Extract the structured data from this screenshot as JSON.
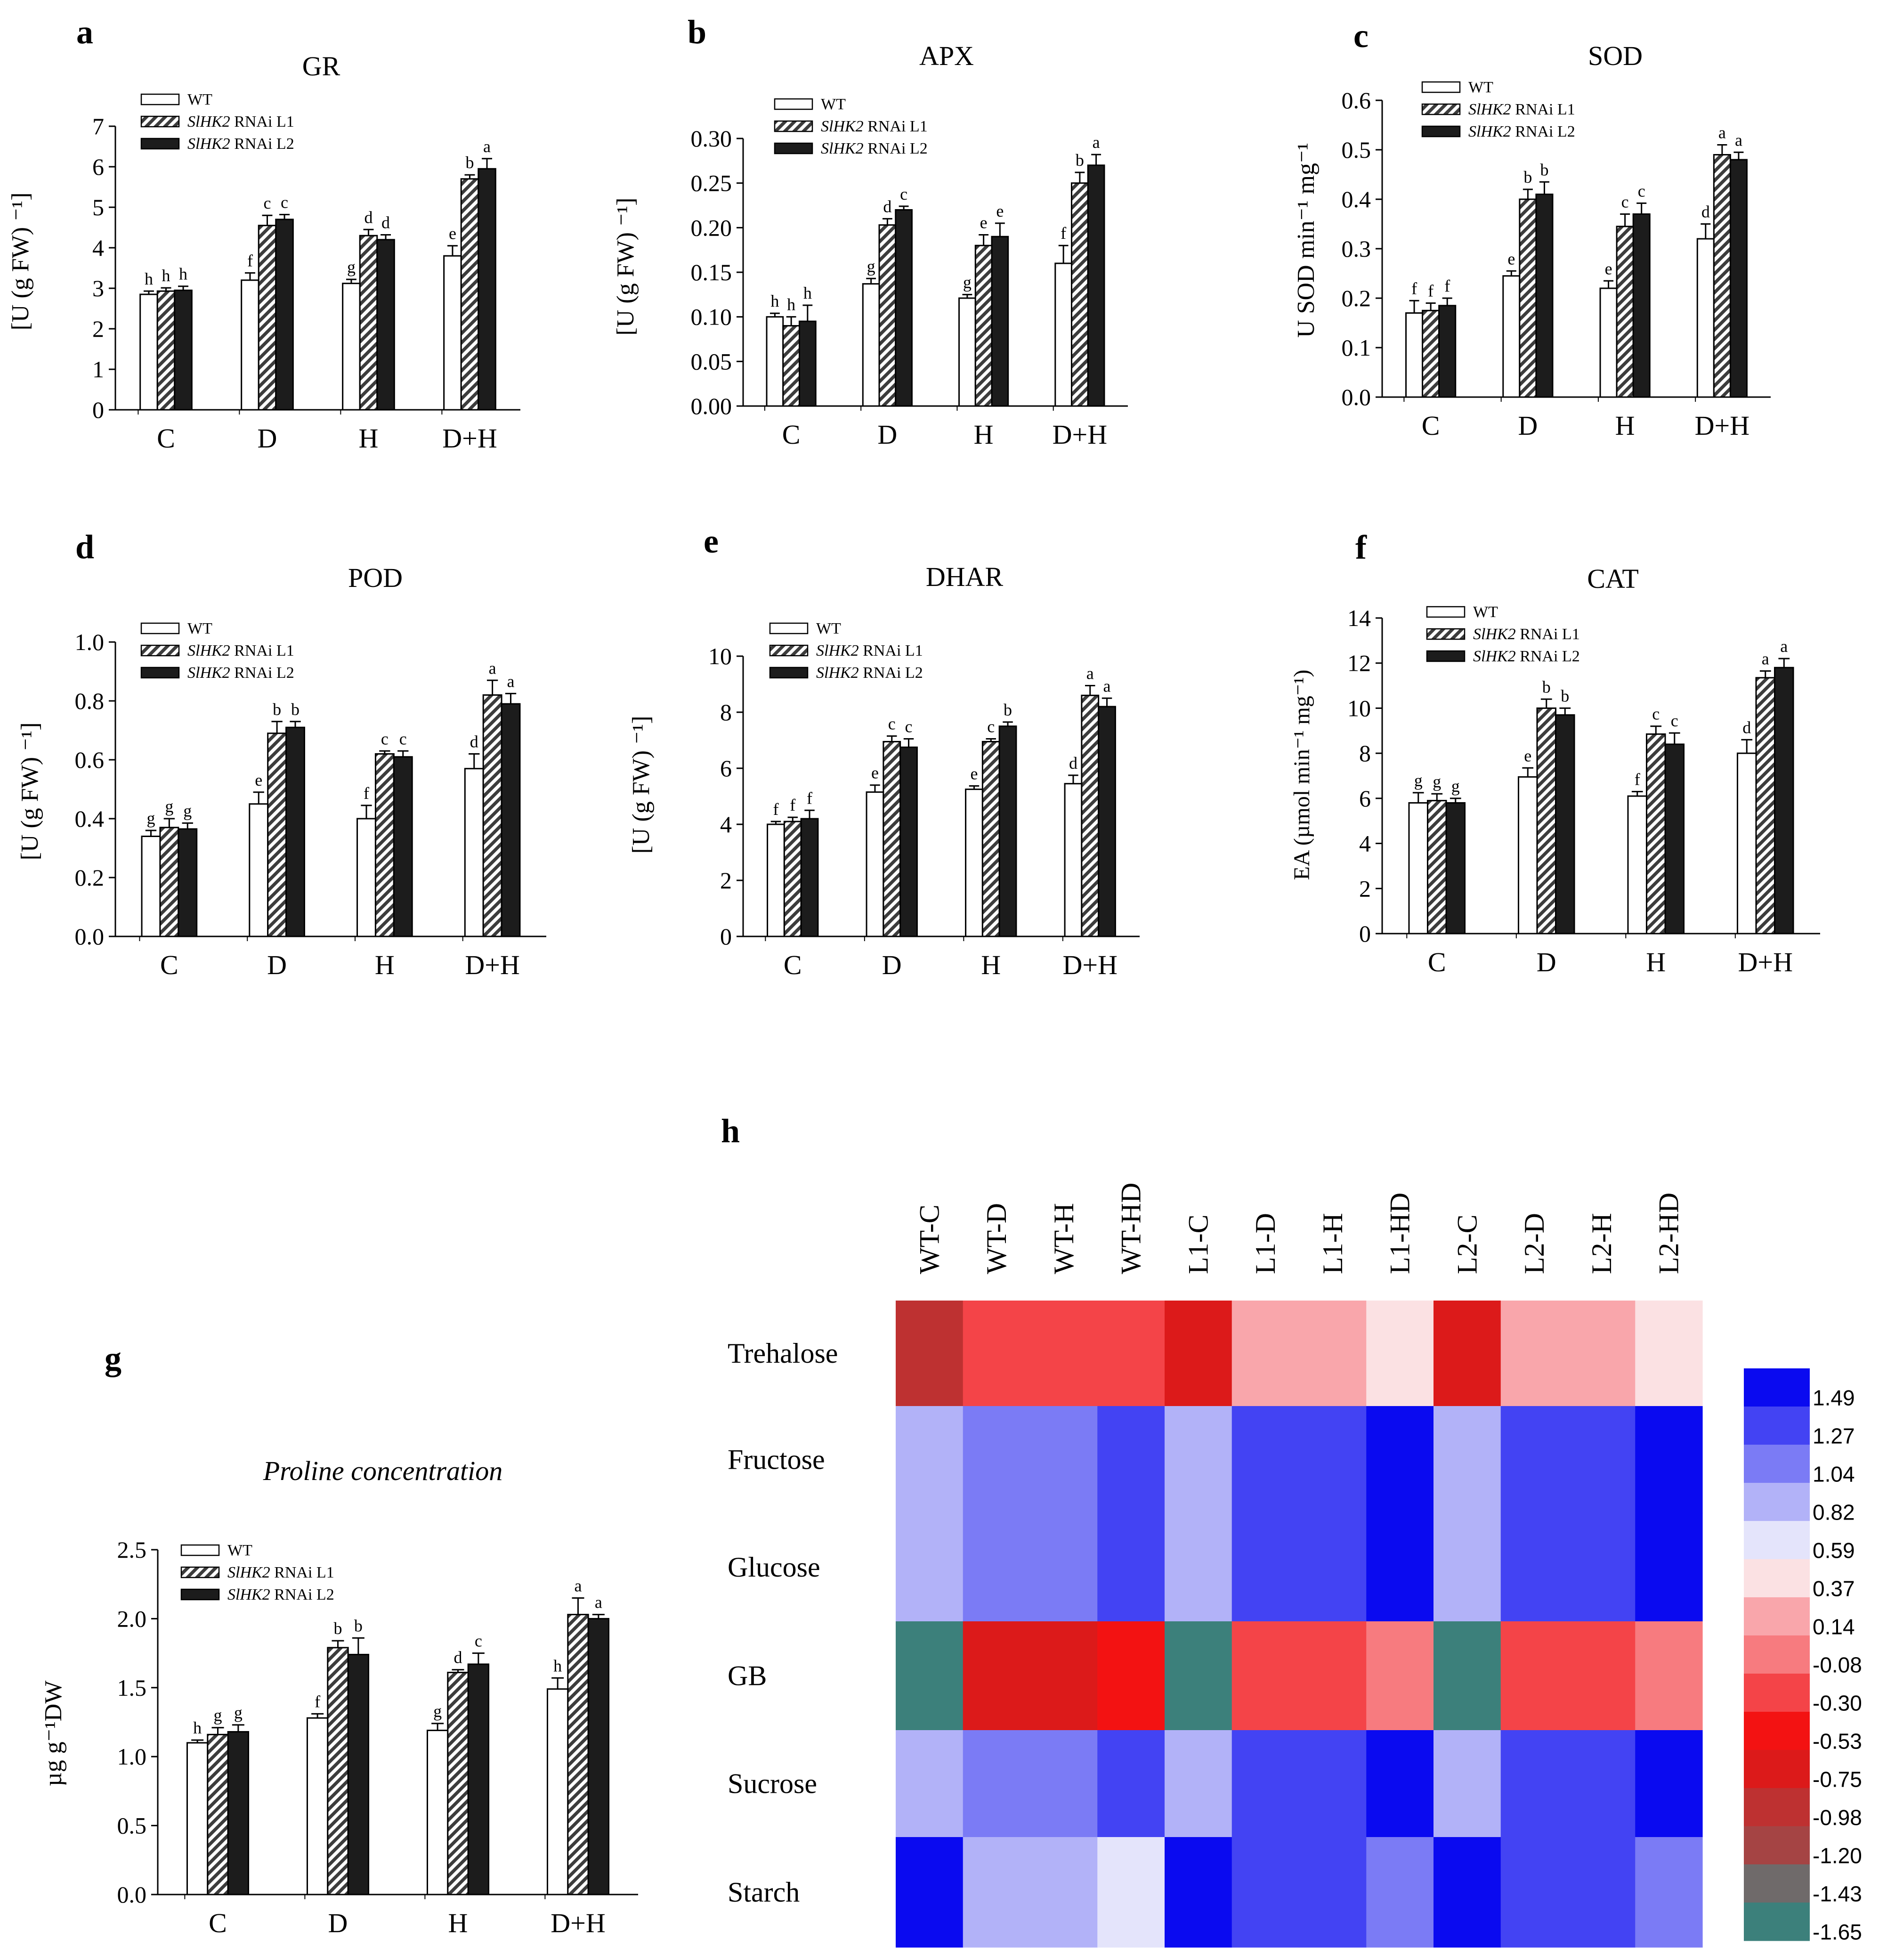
{
  "chart_data": [
    {
      "type": "bar",
      "panel_letter": "a",
      "title": "GR",
      "ylabel": "[U (g FW) ⁻¹]",
      "ylim": [
        0,
        7
      ],
      "yticks": [
        "0",
        "1",
        "2",
        "3",
        "4",
        "5",
        "6",
        "7"
      ],
      "categories": [
        "C",
        "D",
        "H",
        "D+H"
      ],
      "legend": [
        {
          "label": "WT",
          "italic": "",
          "rest": ""
        },
        {
          "label": "SlHK2 RNAi L1",
          "italic": "SlHK2",
          "rest": " RNAi L1"
        },
        {
          "label": "SlHK2 RNAi L2",
          "italic": "SlHK2",
          "rest": " RNAi L2"
        }
      ],
      "series": [
        {
          "name": "WT",
          "values": [
            2.85,
            3.2,
            3.12,
            3.8
          ],
          "errors": [
            0.08,
            0.18,
            0.1,
            0.25
          ],
          "letters": [
            "h",
            "f",
            "g",
            "e"
          ]
        },
        {
          "name": "SlHK2 RNAi L1",
          "values": [
            2.93,
            4.55,
            4.3,
            5.7
          ],
          "errors": [
            0.08,
            0.25,
            0.15,
            0.1
          ],
          "letters": [
            "h",
            "c",
            "d",
            "b"
          ]
        },
        {
          "name": "SlHK2 RNAi L2",
          "values": [
            2.95,
            4.7,
            4.2,
            5.95
          ],
          "errors": [
            0.1,
            0.12,
            0.12,
            0.25
          ],
          "letters": [
            "h",
            "c",
            "d",
            "a"
          ]
        }
      ]
    },
    {
      "type": "bar",
      "panel_letter": "b",
      "title": "APX",
      "ylabel": "[U (g FW) ⁻¹]",
      "ylim": [
        0,
        0.3
      ],
      "yticks": [
        "0.00",
        "0.05",
        "0.10",
        "0.15",
        "0.20",
        "0.25",
        "0.30"
      ],
      "categories": [
        "C",
        "D",
        "H",
        "D+H"
      ],
      "legend": [
        {
          "label": "WT",
          "italic": "",
          "rest": ""
        },
        {
          "label": "SlHK2 RNAi L1",
          "italic": "SlHK2",
          "rest": " RNAi L1"
        },
        {
          "label": "SlHK2 RNAi L2",
          "italic": "SlHK2",
          "rest": " RNAi L2"
        }
      ],
      "series": [
        {
          "name": "WT",
          "values": [
            0.1,
            0.137,
            0.121,
            0.16
          ],
          "errors": [
            0.004,
            0.006,
            0.004,
            0.02
          ],
          "letters": [
            "h",
            "g",
            "g",
            "f"
          ]
        },
        {
          "name": "SlHK2 RNAi L1",
          "values": [
            0.09,
            0.203,
            0.18,
            0.25
          ],
          "errors": [
            0.01,
            0.007,
            0.012,
            0.012
          ],
          "letters": [
            "h",
            "d",
            "e",
            "b"
          ]
        },
        {
          "name": "SlHK2 RNAi L2",
          "values": [
            0.095,
            0.22,
            0.19,
            0.27
          ],
          "errors": [
            0.018,
            0.004,
            0.015,
            0.012
          ],
          "letters": [
            "h",
            "c",
            "e",
            "a"
          ]
        }
      ]
    },
    {
      "type": "bar",
      "panel_letter": "c",
      "title": "SOD",
      "ylabel": "U SOD min⁻¹ mg⁻¹",
      "ylim": [
        0,
        0.6
      ],
      "yticks": [
        "0.0",
        "0.1",
        "0.2",
        "0.3",
        "0.4",
        "0.5",
        "0.6"
      ],
      "categories": [
        "C",
        "D",
        "H",
        "D+H"
      ],
      "legend": [
        {
          "label": "WT",
          "italic": "",
          "rest": ""
        },
        {
          "label": "SlHK2 RNAi L1",
          "italic": "SlHK2",
          "rest": " RNAi L1"
        },
        {
          "label": "SlHK2 RNAi L2",
          "italic": "SlHK2",
          "rest": " RNAi L2"
        }
      ],
      "series": [
        {
          "name": "WT",
          "values": [
            0.17,
            0.245,
            0.22,
            0.32
          ],
          "errors": [
            0.025,
            0.01,
            0.015,
            0.03
          ],
          "letters": [
            "f",
            "e",
            "e",
            "d"
          ]
        },
        {
          "name": "SlHK2 RNAi L1",
          "values": [
            0.175,
            0.4,
            0.345,
            0.49
          ],
          "errors": [
            0.015,
            0.02,
            0.025,
            0.02
          ],
          "letters": [
            "f",
            "b",
            "c",
            "a"
          ]
        },
        {
          "name": "SlHK2 RNAi L2",
          "values": [
            0.185,
            0.41,
            0.37,
            0.48
          ],
          "errors": [
            0.015,
            0.025,
            0.022,
            0.015
          ],
          "letters": [
            "f",
            "b",
            "c",
            "a"
          ]
        }
      ]
    },
    {
      "type": "bar",
      "panel_letter": "d",
      "title": "POD",
      "ylabel": "[U (g FW) ⁻¹]",
      "ylim": [
        0,
        1
      ],
      "yticks": [
        "0.0",
        "0.2",
        "0.4",
        "0.6",
        "0.8",
        "1.0"
      ],
      "categories": [
        "C",
        "D",
        "H",
        "D+H"
      ],
      "legend": [
        {
          "label": "WT",
          "italic": "",
          "rest": ""
        },
        {
          "label": "SlHK2 RNAi L1",
          "italic": "SlHK2",
          "rest": " RNAi L1"
        },
        {
          "label": "SlHK2 RNAi L2",
          "italic": "SlHK2",
          "rest": " RNAi L2"
        }
      ],
      "series": [
        {
          "name": "WT",
          "values": [
            0.34,
            0.45,
            0.4,
            0.57
          ],
          "errors": [
            0.02,
            0.04,
            0.045,
            0.05
          ],
          "letters": [
            "g",
            "e",
            "f",
            "d"
          ]
        },
        {
          "name": "SlHK2 RNAi L1",
          "values": [
            0.37,
            0.69,
            0.62,
            0.82
          ],
          "errors": [
            0.03,
            0.04,
            0.01,
            0.05
          ],
          "letters": [
            "g",
            "b",
            "c",
            "a"
          ]
        },
        {
          "name": "SlHK2 RNAi L2",
          "values": [
            0.365,
            0.71,
            0.61,
            0.79
          ],
          "errors": [
            0.02,
            0.02,
            0.02,
            0.035
          ],
          "letters": [
            "g",
            "b",
            "c",
            "a"
          ]
        }
      ]
    },
    {
      "type": "bar",
      "panel_letter": "e",
      "title": "DHAR",
      "ylabel": "[U (g FW) ⁻¹]",
      "ylim": [
        0,
        10
      ],
      "yticks": [
        "0",
        "2",
        "4",
        "6",
        "8",
        "10"
      ],
      "categories": [
        "C",
        "D",
        "H",
        "D+H"
      ],
      "legend": [
        {
          "label": "WT",
          "italic": "",
          "rest": ""
        },
        {
          "label": "SlHK2 RNAi L1",
          "italic": "SlHK2",
          "rest": " RNAi L1"
        },
        {
          "label": "SlHK2 RNAi L2",
          "italic": "SlHK2",
          "rest": " RNAi L2"
        }
      ],
      "series": [
        {
          "name": "WT",
          "values": [
            4.0,
            5.15,
            5.25,
            5.45
          ],
          "errors": [
            0.1,
            0.25,
            0.12,
            0.3
          ],
          "letters": [
            "f",
            "e",
            "e",
            "d"
          ]
        },
        {
          "name": "SlHK2 RNAi L1",
          "values": [
            4.1,
            6.95,
            6.95,
            8.6
          ],
          "errors": [
            0.15,
            0.2,
            0.1,
            0.35
          ],
          "letters": [
            "f",
            "c",
            "c",
            "a"
          ]
        },
        {
          "name": "SlHK2 RNAi L2",
          "values": [
            4.2,
            6.75,
            7.5,
            8.2
          ],
          "errors": [
            0.3,
            0.3,
            0.15,
            0.3
          ],
          "letters": [
            "f",
            "c",
            "b",
            "a"
          ]
        }
      ]
    },
    {
      "type": "bar",
      "panel_letter": "f",
      "title": "CAT",
      "ylabel": "EA (µmol min⁻¹ mg⁻¹)",
      "ylim": [
        0,
        14
      ],
      "yticks": [
        "0",
        "2",
        "4",
        "6",
        "8",
        "10",
        "12",
        "14"
      ],
      "categories": [
        "C",
        "D",
        "H",
        "D+H"
      ],
      "legend": [
        {
          "label": "WT",
          "italic": "",
          "rest": ""
        },
        {
          "label": "SlHK2 RNAi L1",
          "italic": "SlHK2",
          "rest": " RNAi L1"
        },
        {
          "label": "SlHK2 RNAi L2",
          "italic": "SlHK2",
          "rest": " RNAi L2"
        }
      ],
      "series": [
        {
          "name": "WT",
          "values": [
            5.8,
            6.95,
            6.1,
            8.0
          ],
          "errors": [
            0.45,
            0.4,
            0.2,
            0.6
          ],
          "letters": [
            "g",
            "e",
            "f",
            "d"
          ]
        },
        {
          "name": "SlHK2 RNAi L1",
          "values": [
            5.9,
            10.0,
            8.85,
            11.35
          ],
          "errors": [
            0.3,
            0.4,
            0.35,
            0.3
          ],
          "letters": [
            "g",
            "b",
            "c",
            "a"
          ]
        },
        {
          "name": "SlHK2 RNAi L2",
          "values": [
            5.8,
            9.7,
            8.4,
            11.8
          ],
          "errors": [
            0.2,
            0.3,
            0.5,
            0.4
          ],
          "letters": [
            "g",
            "b",
            "c",
            "a"
          ]
        }
      ]
    },
    {
      "type": "bar",
      "panel_letter": "g",
      "title": "Proline concentration",
      "ylabel": "µg g⁻¹DW",
      "ylim": [
        0,
        2.5
      ],
      "yticks": [
        "0.0",
        "0.5",
        "1.0",
        "1.5",
        "2.0",
        "2.5"
      ],
      "categories": [
        "C",
        "D",
        "H",
        "D+H"
      ],
      "legend": [
        {
          "label": "WT",
          "italic": "",
          "rest": ""
        },
        {
          "label": "SlHK2 RNAi L1",
          "italic": "SlHK2",
          "rest": " RNAi L1"
        },
        {
          "label": "SlHK2 RNAi L2",
          "italic": "SlHK2",
          "rest": " RNAi L2"
        }
      ],
      "series": [
        {
          "name": "WT",
          "values": [
            1.1,
            1.28,
            1.19,
            1.49
          ],
          "errors": [
            0.02,
            0.03,
            0.05,
            0.08
          ],
          "letters": [
            "h",
            "f",
            "g",
            "h"
          ]
        },
        {
          "name": "SlHK2 RNAi L1",
          "values": [
            1.16,
            1.79,
            1.61,
            2.03
          ],
          "errors": [
            0.05,
            0.05,
            0.02,
            0.12
          ],
          "letters": [
            "g",
            "b",
            "d",
            "a"
          ]
        },
        {
          "name": "SlHK2 RNAi L2",
          "values": [
            1.18,
            1.74,
            1.67,
            2.0
          ],
          "errors": [
            0.05,
            0.12,
            0.08,
            0.03
          ],
          "letters": [
            "g",
            "b",
            "c",
            "a"
          ]
        }
      ]
    },
    {
      "type": "heatmap",
      "panel_letter": "h",
      "columns": [
        "WT-C",
        "WT-D",
        "WT-H",
        "WT-HD",
        "L1-C",
        "L1-D",
        "L1-H",
        "L1-HD",
        "L2-C",
        "L2-D",
        "L2-H",
        "L2-HD"
      ],
      "rows": [
        "Trehalose",
        "Fructose",
        "Glucose",
        "GB",
        "Sucrose",
        "Starch"
      ],
      "values": [
        [
          -0.98,
          -0.3,
          -0.3,
          -0.3,
          -0.75,
          0.14,
          0.14,
          0.37,
          -0.75,
          0.14,
          0.14,
          0.37
        ],
        [
          0.82,
          1.04,
          1.04,
          1.27,
          0.82,
          1.27,
          1.27,
          1.49,
          0.82,
          1.27,
          1.27,
          1.49
        ],
        [
          0.82,
          1.04,
          1.04,
          1.27,
          0.82,
          1.27,
          1.27,
          1.49,
          0.82,
          1.27,
          1.27,
          1.49
        ],
        [
          -1.65,
          -0.75,
          -0.75,
          -0.53,
          -1.65,
          -0.3,
          -0.3,
          -0.08,
          -1.65,
          -0.3,
          -0.3,
          -0.08
        ],
        [
          0.82,
          1.04,
          1.04,
          1.27,
          0.82,
          1.27,
          1.27,
          1.49,
          0.82,
          1.27,
          1.27,
          1.49
        ],
        [
          1.49,
          0.82,
          0.82,
          0.59,
          1.49,
          1.27,
          1.27,
          1.04,
          1.49,
          1.27,
          1.27,
          1.04
        ]
      ],
      "colorbar": {
        "labels": [
          "1.49",
          "1.27",
          "1.04",
          "0.82",
          "0.59",
          "0.37",
          "0.14",
          "-0.08",
          "-0.30",
          "-0.53",
          "-0.75",
          "-0.98",
          "-1.20",
          "-1.43",
          "-1.65"
        ],
        "colors": [
          "#0a0af0",
          "#4343f3",
          "#7b7bf5",
          "#b2b2f8",
          "#e4e4fb",
          "#fbe1e3",
          "#f9a6ab",
          "#f77b7f",
          "#f44448",
          "#f31212",
          "#dc1a1a",
          "#be3131",
          "#a54444",
          "#6f6a6a",
          "#3c807b"
        ]
      }
    }
  ]
}
